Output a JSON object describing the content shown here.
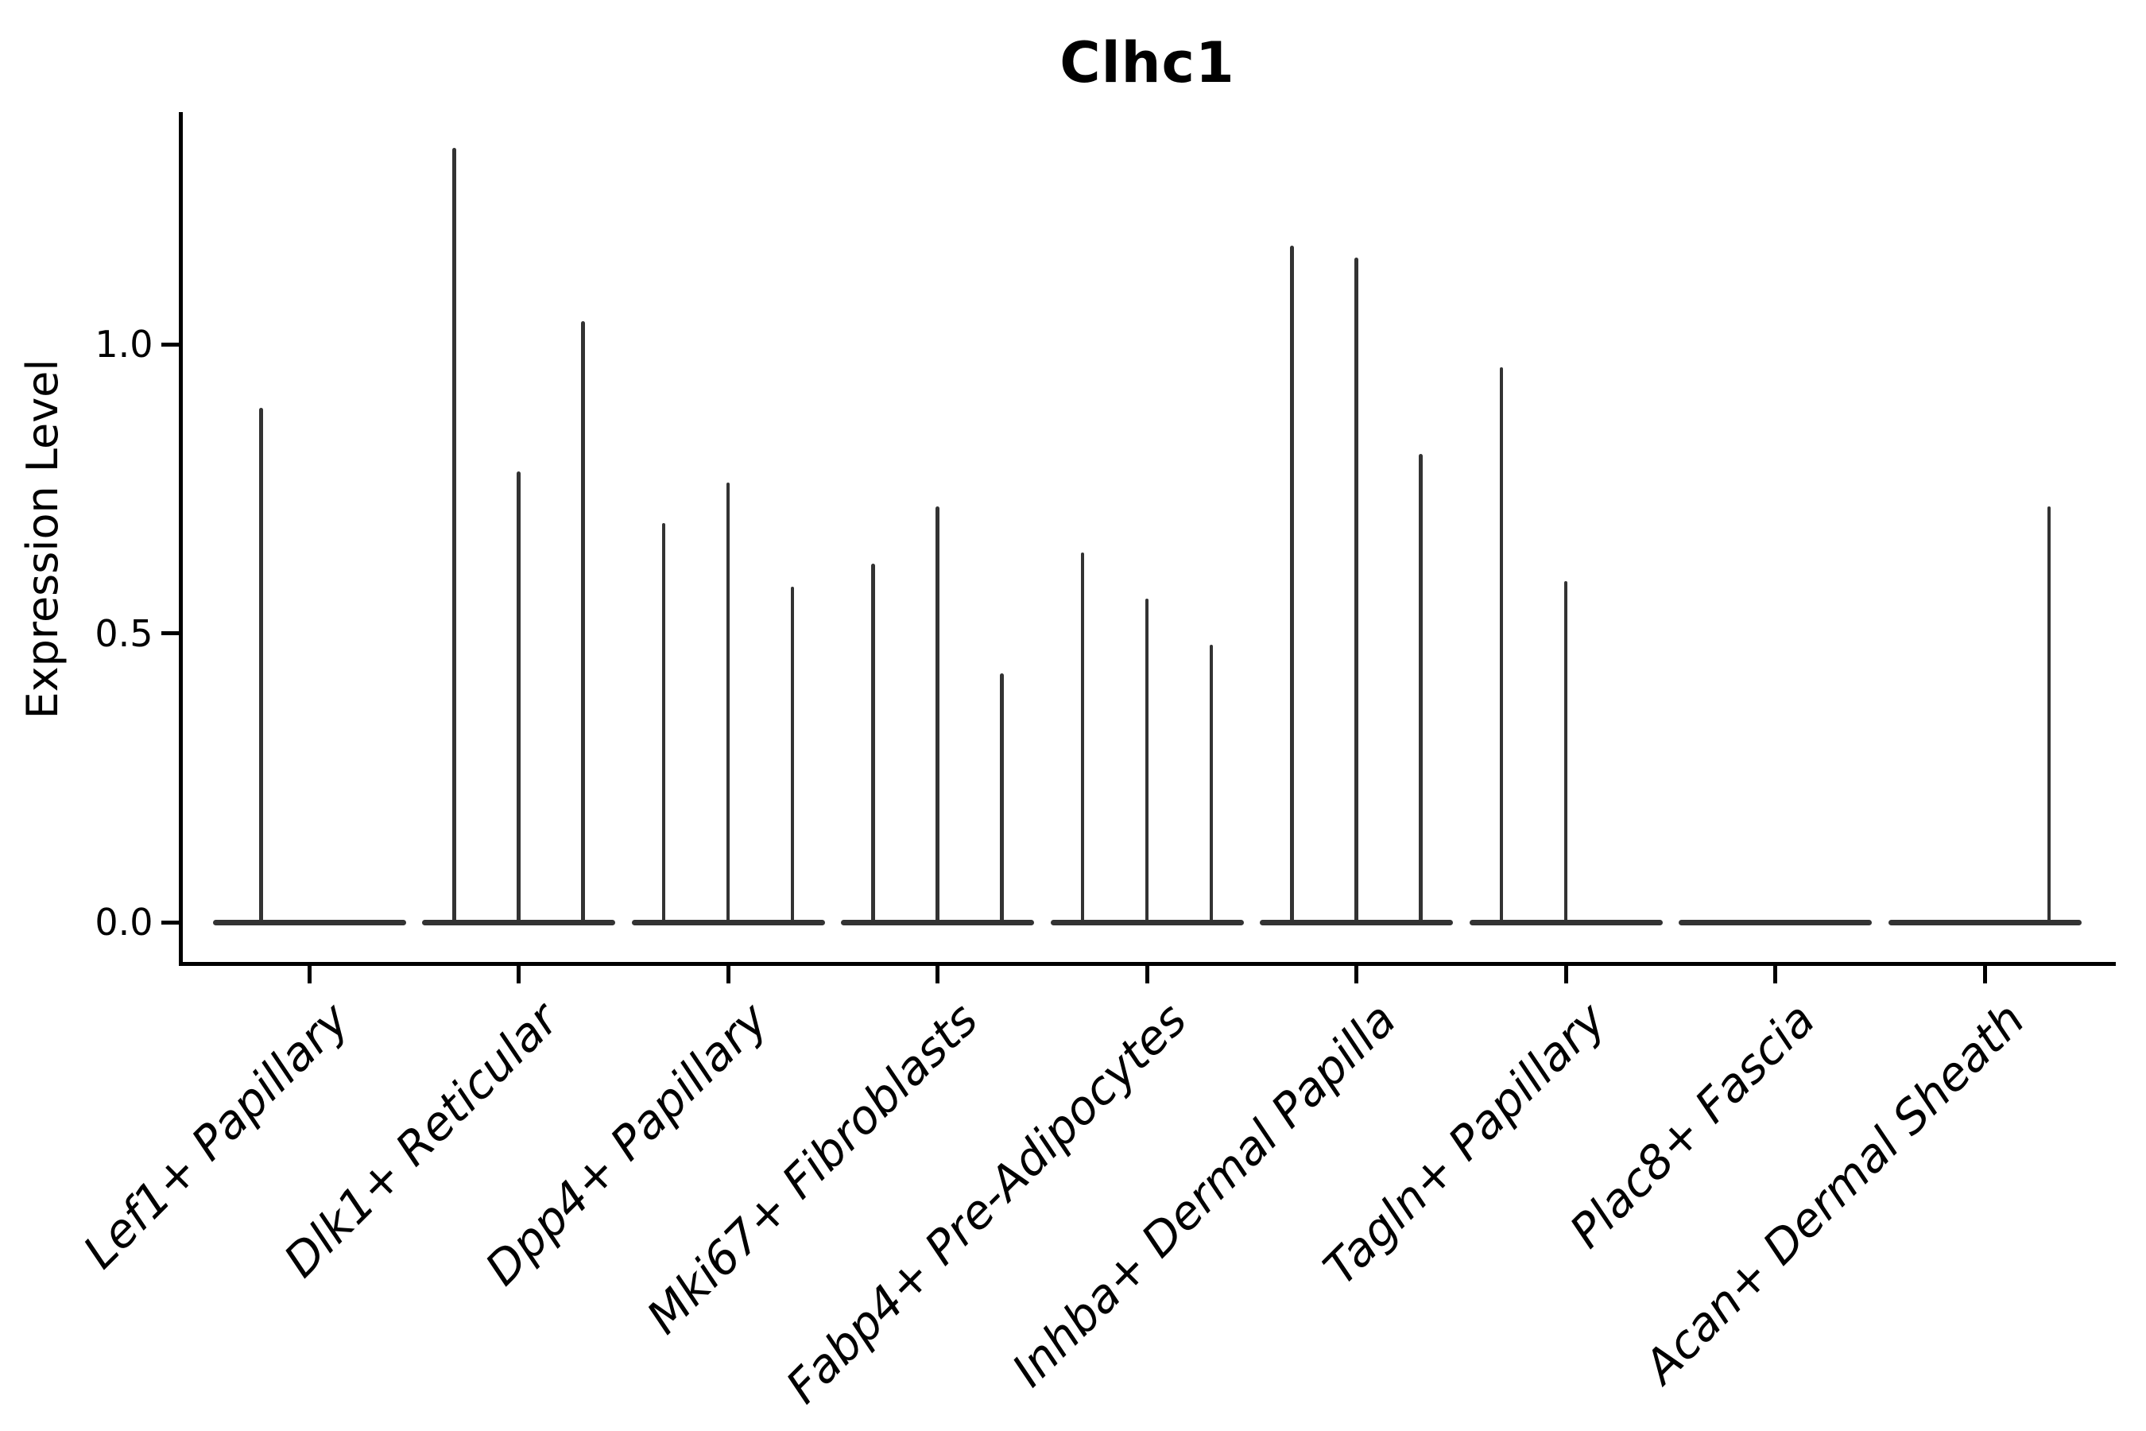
{
  "chart_data": {
    "type": "violin",
    "title": "Clhc1",
    "xlabel": "",
    "ylabel": "Expression Level",
    "ytick_labels": [
      "0.0",
      "0.5",
      "1.0"
    ],
    "ytick_values": [
      0.0,
      0.5,
      1.0
    ],
    "ylim": [
      -0.07,
      1.4
    ],
    "grid": false,
    "legend": "none",
    "description": "Violin plot of Clhc1 expression per fibroblast cluster; density is concentrated at 0 so each violin renders as a flat bar at 0 with a thin spike up to its maximum expression value. Several clusters contain multiple grouped (dodged) violins.",
    "categories": [
      {
        "label": "Lef1+ Papillary",
        "violin_maxima": [
          0.89,
          0
        ]
      },
      {
        "label": "Dlk1+ Reticular",
        "violin_maxima": [
          1.34,
          0.78,
          1.04
        ]
      },
      {
        "label": "Dpp4+ Papillary",
        "violin_maxima": [
          0.69,
          0.76,
          0.58
        ]
      },
      {
        "label": "Mki67+ Fibroblasts",
        "violin_maxima": [
          0.62,
          0.72,
          0.43
        ]
      },
      {
        "label": "Fabp4+ Pre-Adipocytes",
        "violin_maxima": [
          0.64,
          0.56,
          0.48
        ]
      },
      {
        "label": "Inhba+ Dermal Papilla",
        "violin_maxima": [
          1.17,
          1.15,
          0.81
        ]
      },
      {
        "label": "Tagln+ Papillary",
        "violin_maxima": [
          0.96,
          0.59,
          0
        ]
      },
      {
        "label": "Plac8+ Fascia",
        "violin_maxima": [
          0,
          0,
          0
        ]
      },
      {
        "label": "Acan+ Dermal Sheath",
        "violin_maxima": [
          0,
          0,
          0.72
        ]
      }
    ],
    "colors": {
      "violin": "#333333",
      "axis": "#000000",
      "text": "#000000",
      "background": "#ffffff"
    }
  }
}
